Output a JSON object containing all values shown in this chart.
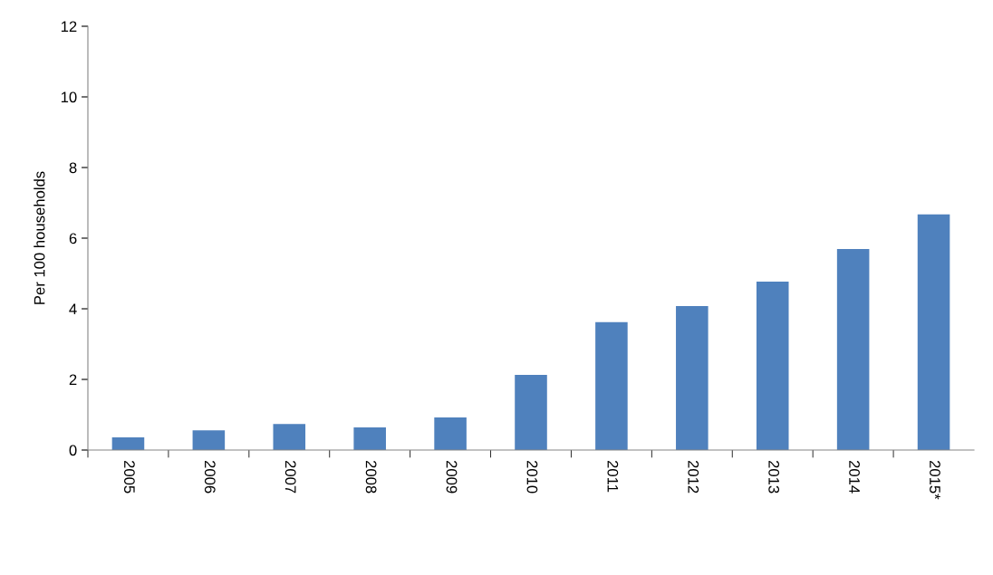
{
  "chart_data": {
    "type": "bar",
    "ylabel": "Per 100 households",
    "categories": [
      "2005",
      "2006",
      "2007",
      "2008",
      "2009",
      "2010",
      "2011",
      "2012",
      "2013",
      "2014",
      "2015*"
    ],
    "values": [
      0.36,
      0.56,
      0.74,
      0.64,
      0.92,
      2.13,
      3.62,
      4.08,
      4.77,
      5.69,
      6.67
    ],
    "color": "#4f81bd",
    "ylim": [
      0,
      12
    ],
    "yticks": [
      0,
      2,
      4,
      6,
      8,
      10,
      12
    ],
    "grid": false
  }
}
